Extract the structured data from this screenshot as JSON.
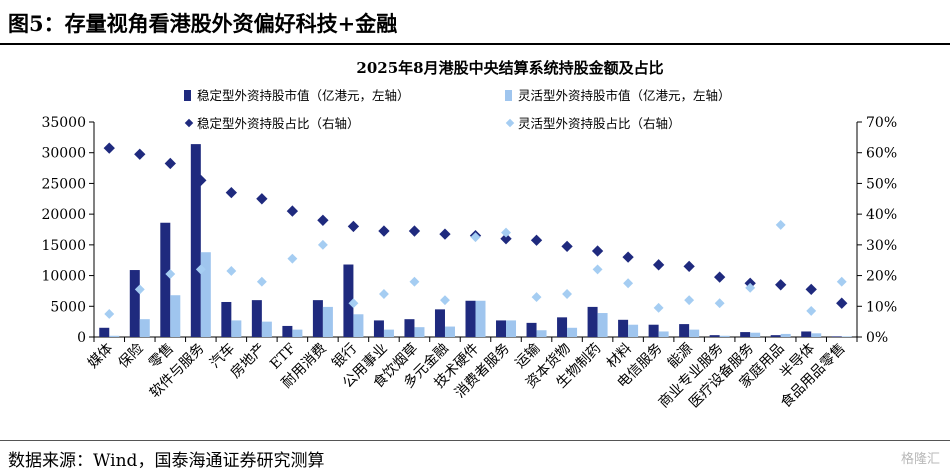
{
  "figure_title": "图5：存量视角看港股外资偏好科技+金融",
  "source": "数据来源：Wind，国泰海通证券研究测算",
  "watermark": "格隆汇",
  "colors": {
    "stable_bar": "#1f2a7e",
    "flex_bar": "#9fc5ee",
    "stable_marker": "#1f2a7e",
    "flex_marker": "#a5cdf2",
    "axis": "#000000"
  },
  "chart_data": {
    "type": "bar",
    "title": "2025年8月港股中央结算系统持股金额及占比",
    "categories": [
      "媒体",
      "保险",
      "零售",
      "软件与服务",
      "汽车",
      "房地产",
      "ETF",
      "耐用消费",
      "银行",
      "公用事业",
      "食饮烟草",
      "多元金融",
      "技术硬件",
      "消费者服务",
      "运输",
      "资本货物",
      "生物制药",
      "材料",
      "电信服务",
      "能源",
      "商业专业服务",
      "医疗设备服务",
      "家庭用品",
      "半导体",
      "食品用品零售"
    ],
    "series": [
      {
        "name": "稳定型外资持股市值（亿港元，左轴）",
        "type": "bar",
        "axis": "left",
        "values": [
          1500,
          10900,
          18600,
          31400,
          5700,
          6000,
          1800,
          6000,
          11800,
          2700,
          2900,
          4500,
          5900,
          2700,
          2300,
          3200,
          4900,
          2800,
          2000,
          2100,
          300,
          800,
          300,
          900,
          100
        ]
      },
      {
        "name": "灵活型外资持股市值（亿港元，左轴）",
        "type": "bar",
        "axis": "left",
        "values": [
          200,
          2900,
          6800,
          13800,
          2700,
          2500,
          1200,
          4900,
          3700,
          1200,
          1600,
          1700,
          5900,
          2700,
          1100,
          1500,
          3900,
          2000,
          900,
          1200,
          200,
          700,
          500,
          600,
          100
        ]
      },
      {
        "name": "稳定型外资持股占比（右轴）",
        "type": "scatter",
        "axis": "right",
        "values": [
          61.5,
          59.5,
          56.5,
          51,
          47,
          45,
          41,
          38,
          36,
          34.5,
          34.5,
          33.5,
          33,
          32,
          31.5,
          29.5,
          28,
          26,
          23.5,
          23,
          19.5,
          17.5,
          17,
          15.5,
          11
        ]
      },
      {
        "name": "灵活型外资持股占比（右轴）",
        "type": "scatter",
        "axis": "right",
        "values": [
          7.5,
          15.5,
          20.5,
          22,
          21.5,
          18,
          25.5,
          30,
          11,
          14,
          18,
          12,
          32.5,
          34,
          13,
          14,
          22,
          17.5,
          9.5,
          12,
          11,
          16,
          36.5,
          8.5,
          18
        ]
      }
    ],
    "ylim_left": [
      0,
      35000
    ],
    "yticks_left": [
      "0",
      "5000",
      "10000",
      "15000",
      "20000",
      "25000",
      "30000",
      "35000"
    ],
    "ylim_right": [
      0,
      70
    ],
    "yticks_right": [
      "0%",
      "10%",
      "20%",
      "30%",
      "40%",
      "50%",
      "60%",
      "70%"
    ],
    "legend_position": "top",
    "grid": false
  }
}
